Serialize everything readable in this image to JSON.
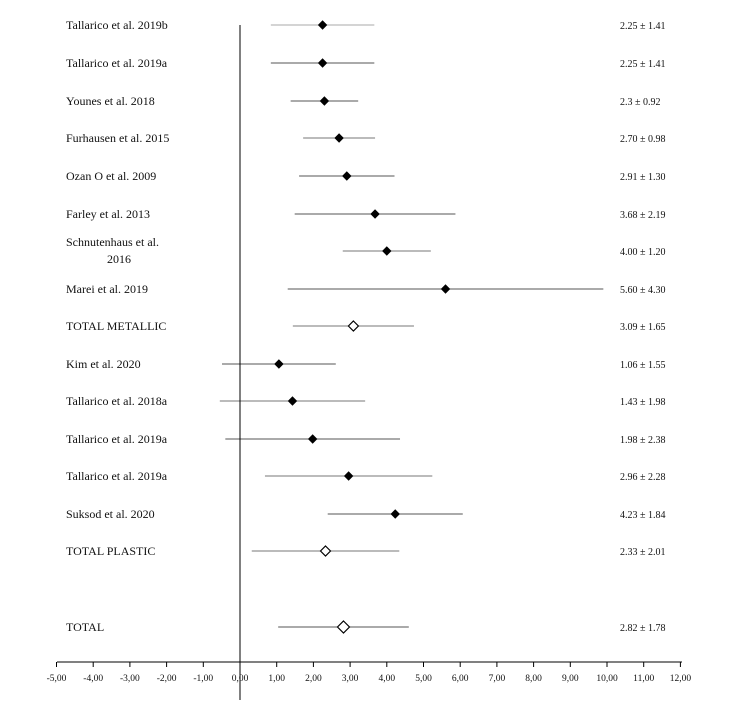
{
  "chart_data": {
    "type": "forest",
    "xlim": [
      -5,
      12
    ],
    "x_ticks": [
      "-5,00",
      "-4,00",
      "-3,00",
      "-2,00",
      "-1,00",
      "0,00",
      "1,00",
      "2,00",
      "3,00",
      "4,00",
      "5,00",
      "6,00",
      "7,00",
      "8,00",
      "9,00",
      "10,00",
      "11,00",
      "12,00"
    ],
    "reference_line": 0,
    "rows": [
      {
        "label": "Tallarico et al. 2019b",
        "mean": 2.25,
        "low": 0.84,
        "high": 3.66,
        "text": "2.25 ± 1.41",
        "kind": "study",
        "line_color": "#aaaaaa"
      },
      {
        "label": "Tallarico et al. 2019a",
        "mean": 2.25,
        "low": 0.84,
        "high": 3.66,
        "text": "2.25 ± 1.41",
        "kind": "study",
        "line_color": "#555555"
      },
      {
        "label": "Younes et al. 2018",
        "mean": 2.3,
        "low": 1.38,
        "high": 3.22,
        "text": "2.3 ± 0.92",
        "kind": "study",
        "line_color": "#555555"
      },
      {
        "label": "Furhausen et al. 2015",
        "mean": 2.7,
        "low": 1.72,
        "high": 3.68,
        "text": "2.70 ± 0.98",
        "kind": "study",
        "line_color": "#777777"
      },
      {
        "label": "Ozan O et al. 2009",
        "mean": 2.91,
        "low": 1.61,
        "high": 4.21,
        "text": "2.91 ± 1.30",
        "kind": "study",
        "line_color": "#555555"
      },
      {
        "label": "Farley et al. 2013",
        "mean": 3.68,
        "low": 1.49,
        "high": 5.87,
        "text": "3.68 ± 2.19",
        "kind": "study",
        "line_color": "#555555"
      },
      {
        "label_lines": [
          "Schnutenhaus et al.",
          "2016"
        ],
        "mean": 4.0,
        "low": 2.8,
        "high": 5.2,
        "text": "4.00 ± 1.20",
        "kind": "study",
        "line_color": "#777777"
      },
      {
        "label": "Marei et al. 2019",
        "mean": 5.6,
        "low": 1.3,
        "high": 9.9,
        "text": "5.60 ± 4.30",
        "kind": "study",
        "line_color": "#555555"
      },
      {
        "label": "TOTAL METALLIC",
        "mean": 3.09,
        "low": 1.44,
        "high": 4.74,
        "text": "3.09 ± 1.65",
        "kind": "total",
        "line_color": "#777777"
      },
      {
        "label": "Kim et al. 2020",
        "mean": 1.06,
        "low": -0.49,
        "high": 2.61,
        "text": "1.06 ± 1.55",
        "kind": "study",
        "line_color": "#555555"
      },
      {
        "label": "Tallarico et al. 2018a",
        "mean": 1.43,
        "low": -0.55,
        "high": 3.41,
        "text": "1.43 ± 1.98",
        "kind": "study",
        "line_color": "#777777"
      },
      {
        "label": "Tallarico et al. 2019a",
        "mean": 1.98,
        "low": -0.4,
        "high": 4.36,
        "text": "1.98 ± 2.38",
        "kind": "study",
        "line_color": "#555555"
      },
      {
        "label": "Tallarico et al. 2019a",
        "mean": 2.96,
        "low": 0.68,
        "high": 5.24,
        "text": "2.96 ± 2.28",
        "kind": "study",
        "line_color": "#777777"
      },
      {
        "label": "Suksod et al. 2020",
        "mean": 4.23,
        "low": 2.39,
        "high": 6.07,
        "text": "4.23 ± 1.84",
        "kind": "study",
        "line_color": "#555555"
      },
      {
        "label": "TOTAL PLASTIC",
        "mean": 2.33,
        "low": 0.32,
        "high": 4.34,
        "text": "2.33 ± 2.01",
        "kind": "total",
        "line_color": "#777777"
      },
      {
        "label": "TOTAL",
        "mean": 2.82,
        "low": 1.04,
        "high": 4.6,
        "text": "2.82 ± 1.78",
        "kind": "grand_total",
        "line_color": "#555555"
      }
    ]
  }
}
